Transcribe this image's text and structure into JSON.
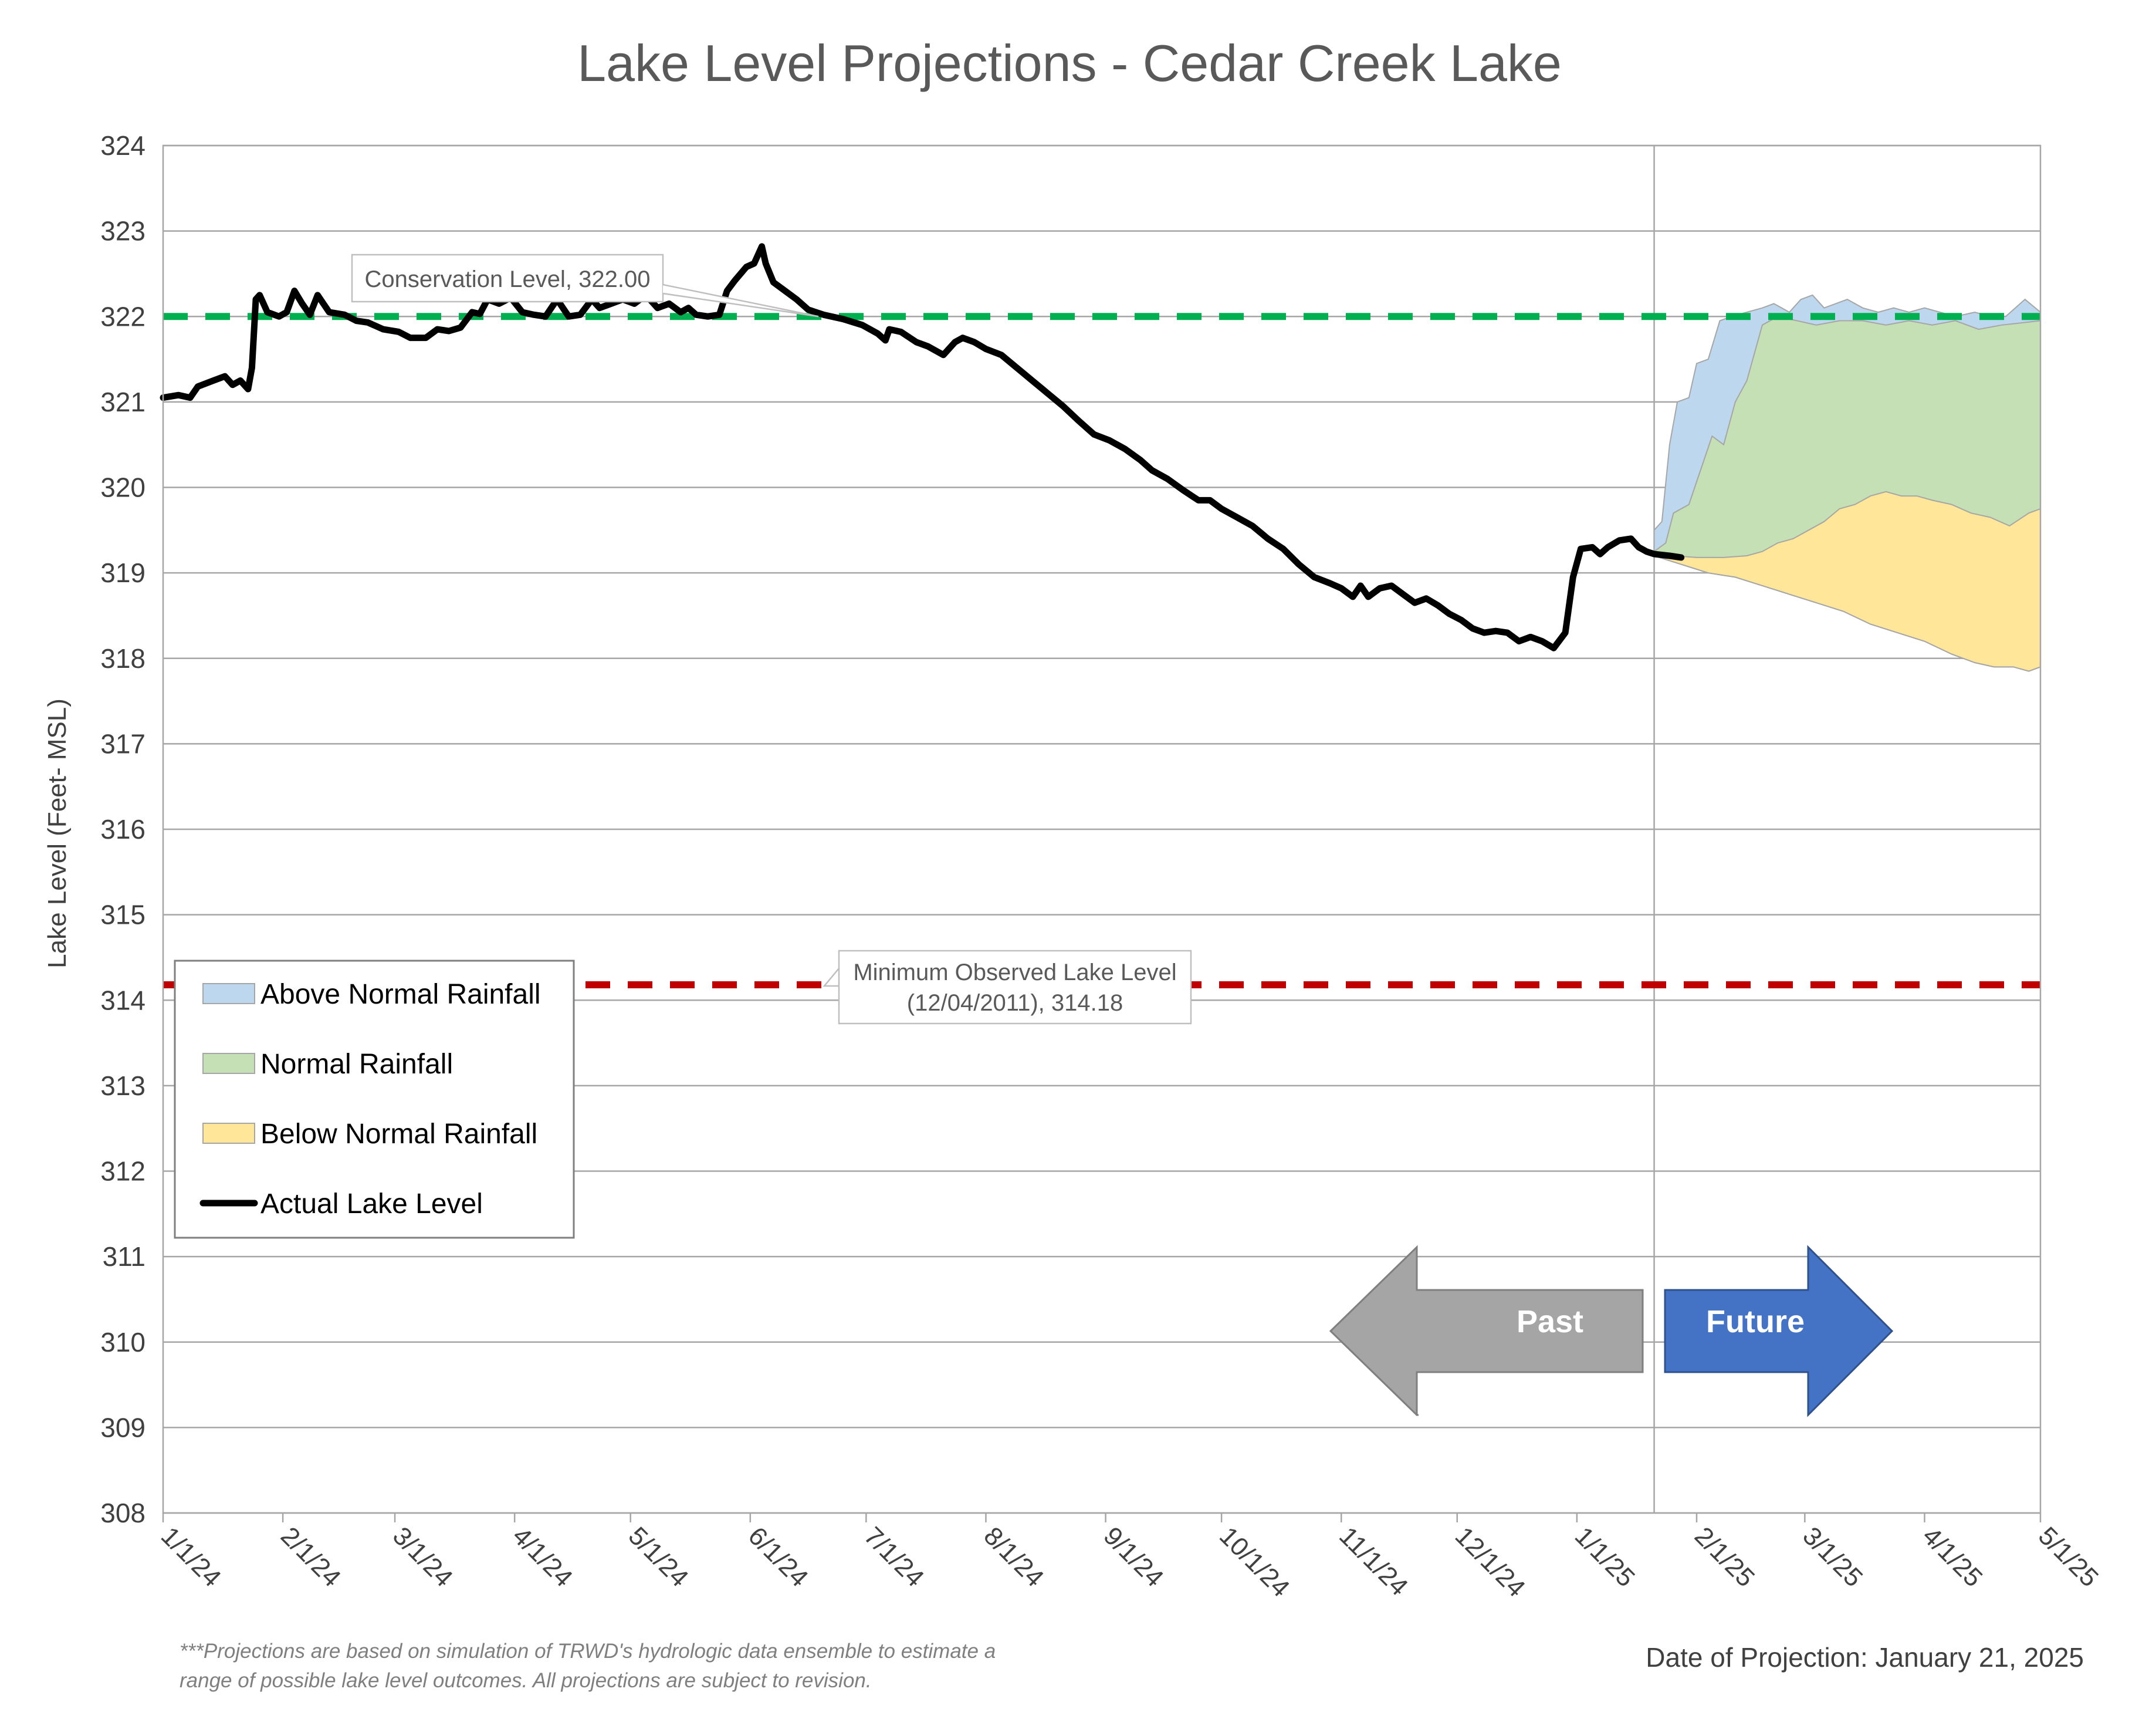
{
  "chart_data": {
    "type": "area",
    "title": "Lake Level Projections - Cedar Creek Lake",
    "ylabel": "Lake Level (Feet- MSL)",
    "xlabel": "",
    "ylim": [
      308,
      324
    ],
    "xlim": [
      "2024-01-01",
      "2025-05-01"
    ],
    "x_ticks": [
      "2024-01-01",
      "2024-02-01",
      "2024-03-01",
      "2024-04-01",
      "2024-05-01",
      "2024-06-01",
      "2024-07-01",
      "2024-08-01",
      "2024-09-01",
      "2024-10-01",
      "2024-11-01",
      "2024-12-01",
      "2025-01-01",
      "2025-02-01",
      "2025-03-01",
      "2025-04-01",
      "2025-05-01"
    ],
    "x_tick_labels": [
      "1/1/24",
      "2/1/24",
      "3/1/24",
      "4/1/24",
      "5/1/24",
      "6/1/24",
      "7/1/24",
      "8/1/24",
      "9/1/24",
      "10/1/24",
      "11/1/24",
      "12/1/24",
      "1/1/25",
      "2/1/25",
      "3/1/25",
      "4/1/25",
      "5/1/25"
    ],
    "y_ticks": [
      308,
      309,
      310,
      311,
      312,
      313,
      314,
      315,
      316,
      317,
      318,
      319,
      320,
      321,
      322,
      323,
      324
    ],
    "grid": "horizontal",
    "legend": {
      "placement": "bottom-left",
      "entries": [
        {
          "label": "Above Normal Rainfall",
          "color": "#BDD7EE"
        },
        {
          "label": "Normal Rainfall",
          "color": "#C5E0B4"
        },
        {
          "label": "Below Normal Rainfall",
          "color": "#FFE699"
        },
        {
          "label": "Actual Lake Level",
          "color": "#000000"
        }
      ]
    },
    "reference_lines": [
      {
        "value": 322.0,
        "color": "#00B050",
        "label": "Conservation Level, 322.00",
        "label_lines": [
          "Conservation Level, 322.00"
        ]
      },
      {
        "value": 314.18,
        "color": "#C00000",
        "label": "Minimum Observed Lake Level (12/04/2011), 314.18",
        "label_lines": [
          "Minimum Observed Lake Level",
          "(12/04/2011), 314.18"
        ]
      }
    ],
    "projection_date": "2025-01-21",
    "series": [
      {
        "name": "Actual Lake Level",
        "color": "#000000",
        "points": [
          [
            "2024-01-01",
            321.05
          ],
          [
            "2024-01-05",
            321.08
          ],
          [
            "2024-01-08",
            321.05
          ],
          [
            "2024-01-10",
            321.18
          ],
          [
            "2024-01-14",
            321.25
          ],
          [
            "2024-01-17",
            321.3
          ],
          [
            "2024-01-19",
            321.2
          ],
          [
            "2024-01-21",
            321.25
          ],
          [
            "2024-01-23",
            321.15
          ],
          [
            "2024-01-24",
            321.4
          ],
          [
            "2024-01-25",
            322.2
          ],
          [
            "2024-01-26",
            322.25
          ],
          [
            "2024-01-28",
            322.05
          ],
          [
            "2024-01-31",
            322.0
          ],
          [
            "2024-02-02",
            322.05
          ],
          [
            "2024-02-04",
            322.3
          ],
          [
            "2024-02-06",
            322.15
          ],
          [
            "2024-02-08",
            322.02
          ],
          [
            "2024-02-10",
            322.25
          ],
          [
            "2024-02-13",
            322.05
          ],
          [
            "2024-02-17",
            322.02
          ],
          [
            "2024-02-20",
            321.95
          ],
          [
            "2024-02-23",
            321.93
          ],
          [
            "2024-02-27",
            321.85
          ],
          [
            "2024-03-02",
            321.82
          ],
          [
            "2024-03-05",
            321.75
          ],
          [
            "2024-03-09",
            321.75
          ],
          [
            "2024-03-12",
            321.85
          ],
          [
            "2024-03-15",
            321.83
          ],
          [
            "2024-03-18",
            321.87
          ],
          [
            "2024-03-21",
            322.05
          ],
          [
            "2024-03-23",
            322.03
          ],
          [
            "2024-03-25",
            322.2
          ],
          [
            "2024-03-28",
            322.15
          ],
          [
            "2024-03-31",
            322.22
          ],
          [
            "2024-04-03",
            322.05
          ],
          [
            "2024-04-06",
            322.02
          ],
          [
            "2024-04-09",
            322.0
          ],
          [
            "2024-04-12",
            322.2
          ],
          [
            "2024-04-15",
            322.0
          ],
          [
            "2024-04-18",
            322.02
          ],
          [
            "2024-04-21",
            322.2
          ],
          [
            "2024-04-23",
            322.1
          ],
          [
            "2024-04-26",
            322.15
          ],
          [
            "2024-04-29",
            322.2
          ],
          [
            "2024-05-02",
            322.15
          ],
          [
            "2024-05-05",
            322.25
          ],
          [
            "2024-05-08",
            322.1
          ],
          [
            "2024-05-11",
            322.15
          ],
          [
            "2024-05-14",
            322.05
          ],
          [
            "2024-05-16",
            322.1
          ],
          [
            "2024-05-18",
            322.02
          ],
          [
            "2024-05-21",
            322.0
          ],
          [
            "2024-05-24",
            322.02
          ],
          [
            "2024-05-26",
            322.3
          ],
          [
            "2024-05-28",
            322.42
          ],
          [
            "2024-05-31",
            322.58
          ],
          [
            "2024-06-02",
            322.62
          ],
          [
            "2024-06-04",
            322.82
          ],
          [
            "2024-06-05",
            322.62
          ],
          [
            "2024-06-07",
            322.4
          ],
          [
            "2024-06-10",
            322.3
          ],
          [
            "2024-06-13",
            322.2
          ],
          [
            "2024-06-16",
            322.08
          ],
          [
            "2024-06-20",
            322.02
          ],
          [
            "2024-06-25",
            321.97
          ],
          [
            "2024-06-30",
            321.9
          ],
          [
            "2024-07-04",
            321.8
          ],
          [
            "2024-07-06",
            321.72
          ],
          [
            "2024-07-07",
            321.85
          ],
          [
            "2024-07-10",
            321.82
          ],
          [
            "2024-07-14",
            321.7
          ],
          [
            "2024-07-17",
            321.65
          ],
          [
            "2024-07-21",
            321.55
          ],
          [
            "2024-07-24",
            321.7
          ],
          [
            "2024-07-26",
            321.75
          ],
          [
            "2024-07-29",
            321.7
          ],
          [
            "2024-08-01",
            321.62
          ],
          [
            "2024-08-05",
            321.55
          ],
          [
            "2024-08-09",
            321.4
          ],
          [
            "2024-08-13",
            321.25
          ],
          [
            "2024-08-17",
            321.1
          ],
          [
            "2024-08-21",
            320.95
          ],
          [
            "2024-08-25",
            320.78
          ],
          [
            "2024-08-29",
            320.62
          ],
          [
            "2024-09-02",
            320.55
          ],
          [
            "2024-09-06",
            320.45
          ],
          [
            "2024-09-10",
            320.32
          ],
          [
            "2024-09-13",
            320.2
          ],
          [
            "2024-09-17",
            320.1
          ],
          [
            "2024-09-21",
            319.97
          ],
          [
            "2024-09-25",
            319.85
          ],
          [
            "2024-09-28",
            319.85
          ],
          [
            "2024-10-01",
            319.75
          ],
          [
            "2024-10-05",
            319.65
          ],
          [
            "2024-10-09",
            319.55
          ],
          [
            "2024-10-13",
            319.4
          ],
          [
            "2024-10-17",
            319.28
          ],
          [
            "2024-10-21",
            319.1
          ],
          [
            "2024-10-25",
            318.95
          ],
          [
            "2024-10-29",
            318.88
          ],
          [
            "2024-11-01",
            318.82
          ],
          [
            "2024-11-04",
            318.72
          ],
          [
            "2024-11-06",
            318.85
          ],
          [
            "2024-11-08",
            318.72
          ],
          [
            "2024-11-11",
            318.82
          ],
          [
            "2024-11-14",
            318.85
          ],
          [
            "2024-11-17",
            318.75
          ],
          [
            "2024-11-20",
            318.65
          ],
          [
            "2024-11-23",
            318.7
          ],
          [
            "2024-11-26",
            318.62
          ],
          [
            "2024-11-29",
            318.52
          ],
          [
            "2024-12-02",
            318.45
          ],
          [
            "2024-12-05",
            318.35
          ],
          [
            "2024-12-08",
            318.3
          ],
          [
            "2024-12-11",
            318.32
          ],
          [
            "2024-12-14",
            318.3
          ],
          [
            "2024-12-17",
            318.2
          ],
          [
            "2024-12-20",
            318.25
          ],
          [
            "2024-12-23",
            318.2
          ],
          [
            "2024-12-26",
            318.12
          ],
          [
            "2024-12-29",
            318.3
          ],
          [
            "2024-12-31",
            318.95
          ],
          [
            "2025-01-02",
            319.28
          ],
          [
            "2025-01-05",
            319.3
          ],
          [
            "2025-01-07",
            319.22
          ],
          [
            "2025-01-09",
            319.3
          ],
          [
            "2025-01-12",
            319.38
          ],
          [
            "2025-01-15",
            319.4
          ],
          [
            "2025-01-17",
            319.3
          ],
          [
            "2025-01-19",
            319.25
          ],
          [
            "2025-01-21",
            319.22
          ],
          [
            "2025-01-25",
            319.2
          ],
          [
            "2025-01-28",
            319.18
          ]
        ]
      },
      {
        "name": "Above Normal Rainfall",
        "color": "#BDD7EE",
        "upper": [
          [
            "2025-01-21",
            319.5
          ],
          [
            "2025-01-23",
            319.6
          ],
          [
            "2025-01-25",
            320.5
          ],
          [
            "2025-01-27",
            321.0
          ],
          [
            "2025-01-30",
            321.05
          ],
          [
            "2025-02-01",
            321.45
          ],
          [
            "2025-02-04",
            321.5
          ],
          [
            "2025-02-07",
            321.95
          ],
          [
            "2025-02-10",
            322.0
          ],
          [
            "2025-02-14",
            322.05
          ],
          [
            "2025-02-18",
            322.1
          ],
          [
            "2025-02-21",
            322.15
          ],
          [
            "2025-02-25",
            322.05
          ],
          [
            "2025-02-28",
            322.2
          ],
          [
            "2025-03-03",
            322.25
          ],
          [
            "2025-03-06",
            322.1
          ],
          [
            "2025-03-09",
            322.15
          ],
          [
            "2025-03-12",
            322.2
          ],
          [
            "2025-03-16",
            322.1
          ],
          [
            "2025-03-20",
            322.05
          ],
          [
            "2025-03-24",
            322.1
          ],
          [
            "2025-03-28",
            322.05
          ],
          [
            "2025-04-01",
            322.1
          ],
          [
            "2025-04-05",
            322.05
          ],
          [
            "2025-04-09",
            322.0
          ],
          [
            "2025-04-14",
            322.05
          ],
          [
            "2025-04-18",
            322.0
          ],
          [
            "2025-04-22",
            322.0
          ],
          [
            "2025-04-27",
            322.2
          ],
          [
            "2025-05-01",
            322.05
          ]
        ]
      },
      {
        "name": "Normal Rainfall",
        "color": "#C5E0B4",
        "upper": [
          [
            "2025-01-21",
            319.25
          ],
          [
            "2025-01-24",
            319.35
          ],
          [
            "2025-01-26",
            319.7
          ],
          [
            "2025-01-30",
            319.8
          ],
          [
            "2025-02-02",
            320.2
          ],
          [
            "2025-02-05",
            320.6
          ],
          [
            "2025-02-08",
            320.5
          ],
          [
            "2025-02-11",
            321.0
          ],
          [
            "2025-02-14",
            321.25
          ],
          [
            "2025-02-18",
            321.9
          ],
          [
            "2025-02-22",
            322.0
          ],
          [
            "2025-02-27",
            321.95
          ],
          [
            "2025-03-04",
            321.9
          ],
          [
            "2025-03-10",
            321.95
          ],
          [
            "2025-03-16",
            321.95
          ],
          [
            "2025-03-22",
            321.9
          ],
          [
            "2025-03-28",
            321.95
          ],
          [
            "2025-04-03",
            321.9
          ],
          [
            "2025-04-09",
            321.95
          ],
          [
            "2025-04-15",
            321.85
          ],
          [
            "2025-04-21",
            321.9
          ],
          [
            "2025-05-01",
            321.95
          ]
        ]
      },
      {
        "name": "Below Normal Rainfall",
        "color": "#FFE699",
        "upper": [
          [
            "2025-01-21",
            319.22
          ],
          [
            "2025-01-26",
            319.2
          ],
          [
            "2025-02-01",
            319.18
          ],
          [
            "2025-02-08",
            319.18
          ],
          [
            "2025-02-14",
            319.2
          ],
          [
            "2025-02-18",
            319.25
          ],
          [
            "2025-02-22",
            319.35
          ],
          [
            "2025-02-26",
            319.4
          ],
          [
            "2025-03-02",
            319.5
          ],
          [
            "2025-03-06",
            319.6
          ],
          [
            "2025-03-10",
            319.75
          ],
          [
            "2025-03-14",
            319.8
          ],
          [
            "2025-03-18",
            319.9
          ],
          [
            "2025-03-22",
            319.95
          ],
          [
            "2025-03-26",
            319.9
          ],
          [
            "2025-03-30",
            319.9
          ],
          [
            "2025-04-03",
            319.85
          ],
          [
            "2025-04-08",
            319.8
          ],
          [
            "2025-04-13",
            319.7
          ],
          [
            "2025-04-18",
            319.65
          ],
          [
            "2025-04-23",
            319.55
          ],
          [
            "2025-04-28",
            319.7
          ],
          [
            "2025-05-01",
            319.75
          ]
        ],
        "lower": [
          [
            "2025-01-21",
            319.2
          ],
          [
            "2025-01-28",
            319.1
          ],
          [
            "2025-02-04",
            319.0
          ],
          [
            "2025-02-11",
            318.95
          ],
          [
            "2025-02-18",
            318.85
          ],
          [
            "2025-02-25",
            318.75
          ],
          [
            "2025-03-04",
            318.65
          ],
          [
            "2025-03-11",
            318.55
          ],
          [
            "2025-03-18",
            318.4
          ],
          [
            "2025-03-25",
            318.3
          ],
          [
            "2025-04-01",
            318.2
          ],
          [
            "2025-04-08",
            318.05
          ],
          [
            "2025-04-14",
            317.95
          ],
          [
            "2025-04-19",
            317.9
          ],
          [
            "2025-04-24",
            317.9
          ],
          [
            "2025-04-28",
            317.85
          ],
          [
            "2025-05-01",
            317.9
          ]
        ]
      }
    ],
    "annotations": [
      {
        "text": "Past",
        "direction": "left",
        "color": "#A5A5A5"
      },
      {
        "text": "Future",
        "direction": "right",
        "color": "#4472C4"
      }
    ]
  },
  "footnote": {
    "lines": [
      "***Projections are based on simulation of TRWD's hydrologic data ensemble to estimate a",
      "range of possible lake level outcomes.  All projections are subject to revision."
    ]
  },
  "projection_label": "Date of Projection: January 21, 2025"
}
